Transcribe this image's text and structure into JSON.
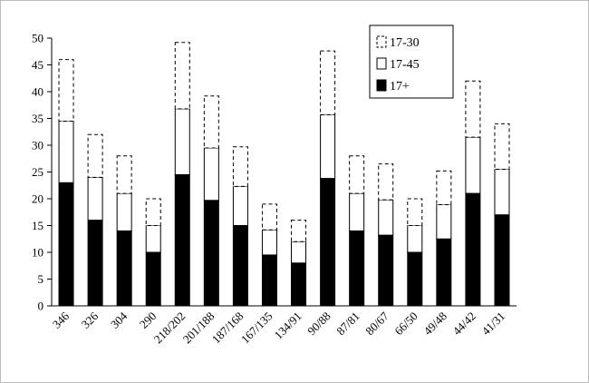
{
  "chart_data": {
    "type": "stacked-bar",
    "categories": [
      "346",
      "326",
      "304",
      "290",
      "218/202",
      "201/188",
      "187/168",
      "167/135",
      "134/91",
      "90/88",
      "87/81",
      "80/67",
      "66/50",
      "49/48",
      "44/42",
      "41/31"
    ],
    "series": [
      {
        "name": "17+",
        "color": "#000000",
        "style": "solid",
        "values": [
          23,
          16,
          14,
          10,
          24.5,
          19.7,
          15,
          9.5,
          8,
          23.8,
          14,
          13.2,
          10,
          12.5,
          21,
          17
        ]
      },
      {
        "name": "17-45",
        "color": "#ffffff",
        "style": "solid",
        "values": [
          11.5,
          8,
          7,
          5,
          12.3,
          9.8,
          7.3,
          4.7,
          4,
          11.9,
          7,
          6.6,
          5,
          6.4,
          10.5,
          8.5
        ]
      },
      {
        "name": "17-30",
        "color": "#ffffff",
        "style": "dashed",
        "values": [
          11.5,
          8,
          7,
          5,
          12.4,
          9.7,
          7.4,
          4.8,
          4,
          11.9,
          7,
          6.7,
          5,
          6.3,
          10.5,
          8.5
        ]
      }
    ],
    "ylim": [
      0,
      50
    ],
    "yticks": [
      0,
      5,
      10,
      15,
      20,
      25,
      30,
      35,
      40,
      45,
      50
    ],
    "grid": false,
    "legend": "top-right"
  }
}
